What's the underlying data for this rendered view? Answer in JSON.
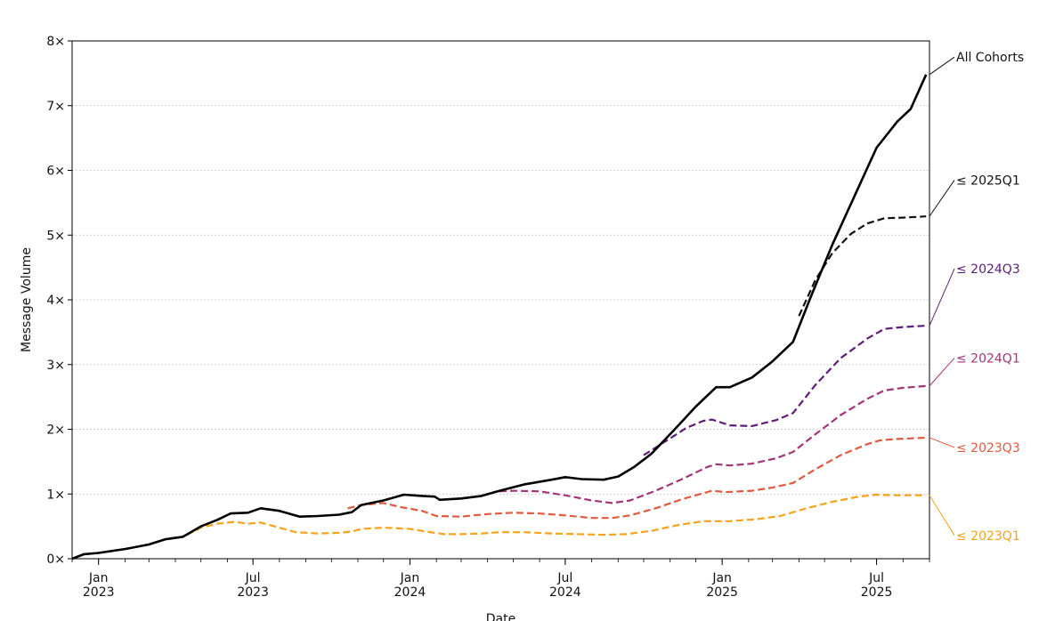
{
  "chart_data": {
    "type": "line",
    "xlabel": "Date",
    "ylabel": "Message Volume",
    "xlim": [
      "2022-12-01",
      "2025-09-01"
    ],
    "ylim": [
      0,
      8
    ],
    "grid": "horizontal dotted",
    "y_ticks": [
      0,
      1,
      2,
      3,
      4,
      5,
      6,
      7,
      8
    ],
    "y_tick_labels": [
      "0×",
      "1×",
      "2×",
      "3×",
      "4×",
      "5×",
      "6×",
      "7×",
      "8×"
    ],
    "x_ticks": [
      {
        "date": "2023-01-01",
        "label": [
          "Jan",
          "2023"
        ]
      },
      {
        "date": "2023-07-01",
        "label": [
          "Jul",
          "2023"
        ]
      },
      {
        "date": "2024-01-01",
        "label": [
          "Jan",
          "2024"
        ]
      },
      {
        "date": "2024-07-01",
        "label": [
          "Jul",
          "2024"
        ]
      },
      {
        "date": "2025-01-01",
        "label": [
          "Jan",
          "2025"
        ]
      },
      {
        "date": "2025-07-01",
        "label": [
          "Jul",
          "2025"
        ]
      }
    ],
    "series": [
      {
        "name": "≤ 2023Q1",
        "color": "#f8a21a",
        "style": "dashed",
        "points": [
          [
            "2022-12-01",
            0
          ],
          [
            "2022-12-15",
            0.07
          ],
          [
            "2023-01-01",
            0.09
          ],
          [
            "2023-02-01",
            0.15
          ],
          [
            "2023-03-01",
            0.22
          ],
          [
            "2023-03-20",
            0.3
          ],
          [
            "2023-04-10",
            0.34
          ],
          [
            "2023-05-01",
            0.48
          ],
          [
            "2023-05-20",
            0.54
          ],
          [
            "2023-06-10",
            0.57
          ],
          [
            "2023-06-25",
            0.54
          ],
          [
            "2023-07-10",
            0.56
          ],
          [
            "2023-08-01",
            0.48
          ],
          [
            "2023-08-20",
            0.41
          ],
          [
            "2023-09-15",
            0.39
          ],
          [
            "2023-10-10",
            0.4
          ],
          [
            "2023-10-25",
            0.42
          ],
          [
            "2023-11-05",
            0.46
          ],
          [
            "2023-12-01",
            0.48
          ],
          [
            "2024-01-01",
            0.46
          ],
          [
            "2024-01-25",
            0.41
          ],
          [
            "2024-02-10",
            0.38
          ],
          [
            "2024-03-01",
            0.38
          ],
          [
            "2024-03-25",
            0.39
          ],
          [
            "2024-04-15",
            0.41
          ],
          [
            "2024-05-15",
            0.41
          ],
          [
            "2024-06-15",
            0.39
          ],
          [
            "2024-07-15",
            0.38
          ],
          [
            "2024-08-15",
            0.37
          ],
          [
            "2024-09-10",
            0.38
          ],
          [
            "2024-10-10",
            0.43
          ],
          [
            "2024-11-10",
            0.52
          ],
          [
            "2024-12-10",
            0.58
          ],
          [
            "2025-01-10",
            0.58
          ],
          [
            "2025-02-10",
            0.61
          ],
          [
            "2025-03-10",
            0.66
          ],
          [
            "2025-04-10",
            0.78
          ],
          [
            "2025-05-10",
            0.88
          ],
          [
            "2025-06-10",
            0.96
          ],
          [
            "2025-07-01",
            0.99
          ],
          [
            "2025-07-20",
            0.98
          ],
          [
            "2025-08-28",
            0.98
          ]
        ]
      },
      {
        "name": "≤ 2023Q3",
        "color": "#e05a3f",
        "style": "dashed",
        "points": [
          [
            "2023-10-20",
            0.78
          ],
          [
            "2023-11-05",
            0.83
          ],
          [
            "2023-12-01",
            0.86
          ],
          [
            "2023-12-20",
            0.8
          ],
          [
            "2024-01-15",
            0.74
          ],
          [
            "2024-02-01",
            0.66
          ],
          [
            "2024-03-01",
            0.65
          ],
          [
            "2024-04-01",
            0.69
          ],
          [
            "2024-05-01",
            0.71
          ],
          [
            "2024-06-01",
            0.7
          ],
          [
            "2024-07-01",
            0.67
          ],
          [
            "2024-08-01",
            0.63
          ],
          [
            "2024-08-25",
            0.63
          ],
          [
            "2024-09-15",
            0.67
          ],
          [
            "2024-10-15",
            0.78
          ],
          [
            "2024-11-15",
            0.92
          ],
          [
            "2024-12-20",
            1.05
          ],
          [
            "2025-01-05",
            1.03
          ],
          [
            "2025-02-05",
            1.05
          ],
          [
            "2025-03-01",
            1.1
          ],
          [
            "2025-03-25",
            1.17
          ],
          [
            "2025-04-20",
            1.38
          ],
          [
            "2025-05-20",
            1.6
          ],
          [
            "2025-06-20",
            1.77
          ],
          [
            "2025-07-05",
            1.83
          ],
          [
            "2025-07-25",
            1.85
          ],
          [
            "2025-08-28",
            1.87
          ]
        ]
      },
      {
        "name": "≤ 2024Q1",
        "color": "#a33577",
        "style": "dashed",
        "points": [
          [
            "2024-04-15",
            1.04
          ],
          [
            "2024-05-01",
            1.05
          ],
          [
            "2024-06-01",
            1.04
          ],
          [
            "2024-07-01",
            0.98
          ],
          [
            "2024-08-01",
            0.9
          ],
          [
            "2024-08-25",
            0.86
          ],
          [
            "2024-09-15",
            0.9
          ],
          [
            "2024-10-15",
            1.05
          ],
          [
            "2024-11-15",
            1.23
          ],
          [
            "2024-12-15",
            1.42
          ],
          [
            "2024-12-25",
            1.46
          ],
          [
            "2025-01-10",
            1.44
          ],
          [
            "2025-02-05",
            1.47
          ],
          [
            "2025-03-05",
            1.55
          ],
          [
            "2025-03-25",
            1.65
          ],
          [
            "2025-04-20",
            1.92
          ],
          [
            "2025-05-20",
            2.22
          ],
          [
            "2025-06-20",
            2.47
          ],
          [
            "2025-07-10",
            2.6
          ],
          [
            "2025-08-01",
            2.64
          ],
          [
            "2025-08-28",
            2.67
          ]
        ]
      },
      {
        "name": "≤ 2024Q3",
        "color": "#5e1d78",
        "style": "dashed",
        "points": [
          [
            "2024-10-01",
            1.6
          ],
          [
            "2024-10-25",
            1.8
          ],
          [
            "2024-11-20",
            2.02
          ],
          [
            "2024-12-10",
            2.13
          ],
          [
            "2024-12-20",
            2.15
          ],
          [
            "2025-01-10",
            2.06
          ],
          [
            "2025-02-05",
            2.05
          ],
          [
            "2025-03-05",
            2.14
          ],
          [
            "2025-03-25",
            2.25
          ],
          [
            "2025-04-20",
            2.68
          ],
          [
            "2025-05-20",
            3.1
          ],
          [
            "2025-06-20",
            3.4
          ],
          [
            "2025-07-10",
            3.55
          ],
          [
            "2025-08-01",
            3.58
          ],
          [
            "2025-08-28",
            3.6
          ]
        ]
      },
      {
        "name": "≤ 2025Q1",
        "color": "#111111",
        "style": "dashed",
        "points": [
          [
            "2025-04-01",
            3.75
          ],
          [
            "2025-04-20",
            4.3
          ],
          [
            "2025-05-10",
            4.72
          ],
          [
            "2025-06-01",
            5.02
          ],
          [
            "2025-06-20",
            5.18
          ],
          [
            "2025-07-10",
            5.26
          ],
          [
            "2025-08-01",
            5.27
          ],
          [
            "2025-08-28",
            5.29
          ]
        ]
      },
      {
        "name": "All Cohorts",
        "color": "#000000",
        "style": "solid",
        "points": [
          [
            "2022-12-01",
            0
          ],
          [
            "2022-12-15",
            0.07
          ],
          [
            "2023-01-01",
            0.09
          ],
          [
            "2023-02-01",
            0.15
          ],
          [
            "2023-03-01",
            0.22
          ],
          [
            "2023-03-20",
            0.3
          ],
          [
            "2023-04-10",
            0.34
          ],
          [
            "2023-05-01",
            0.5
          ],
          [
            "2023-05-20",
            0.6
          ],
          [
            "2023-06-05",
            0.7
          ],
          [
            "2023-06-25",
            0.71
          ],
          [
            "2023-07-10",
            0.78
          ],
          [
            "2023-08-01",
            0.74
          ],
          [
            "2023-08-25",
            0.65
          ],
          [
            "2023-09-15",
            0.66
          ],
          [
            "2023-10-10",
            0.68
          ],
          [
            "2023-10-25",
            0.72
          ],
          [
            "2023-11-05",
            0.83
          ],
          [
            "2023-12-01",
            0.9
          ],
          [
            "2023-12-25",
            0.99
          ],
          [
            "2024-01-15",
            0.97
          ],
          [
            "2024-01-30",
            0.96
          ],
          [
            "2024-02-05",
            0.91
          ],
          [
            "2024-03-01",
            0.93
          ],
          [
            "2024-03-25",
            0.97
          ],
          [
            "2024-04-15",
            1.05
          ],
          [
            "2024-05-15",
            1.15
          ],
          [
            "2024-06-15",
            1.22
          ],
          [
            "2024-07-01",
            1.26
          ],
          [
            "2024-07-20",
            1.23
          ],
          [
            "2024-08-15",
            1.22
          ],
          [
            "2024-09-01",
            1.27
          ],
          [
            "2024-09-20",
            1.42
          ],
          [
            "2024-10-10",
            1.62
          ],
          [
            "2024-11-05",
            1.98
          ],
          [
            "2024-12-01",
            2.35
          ],
          [
            "2024-12-25",
            2.65
          ],
          [
            "2025-01-10",
            2.65
          ],
          [
            "2025-02-05",
            2.8
          ],
          [
            "2025-03-01",
            3.05
          ],
          [
            "2025-03-25",
            3.35
          ],
          [
            "2025-04-15",
            4.05
          ],
          [
            "2025-05-10",
            4.85
          ],
          [
            "2025-06-05",
            5.6
          ],
          [
            "2025-07-01",
            6.35
          ],
          [
            "2025-07-25",
            6.75
          ],
          [
            "2025-08-10",
            6.95
          ],
          [
            "2025-08-28",
            7.48
          ]
        ]
      }
    ],
    "series_labels": [
      {
        "name": "All Cohorts",
        "text": "All Cohorts",
        "color": "#111111",
        "label_y": 7.75,
        "end_y": 7.48
      },
      {
        "name": "≤ 2025Q1",
        "text": "≤ 2025Q1",
        "color": "#111111",
        "label_y": 5.85,
        "end_y": 5.29
      },
      {
        "name": "≤ 2024Q3",
        "text": "≤ 2024Q3",
        "color": "#5e1d78",
        "label_y": 4.48,
        "end_y": 3.6
      },
      {
        "name": "≤ 2024Q1",
        "text": "≤ 2024Q1",
        "color": "#a33577",
        "label_y": 3.1,
        "end_y": 2.67
      },
      {
        "name": "≤ 2023Q3",
        "text": "≤ 2023Q3",
        "color": "#e05a3f",
        "label_y": 1.72,
        "end_y": 1.87
      },
      {
        "name": "≤ 2023Q1",
        "text": "≤ 2023Q1",
        "color": "#f8a21a",
        "label_y": 0.36,
        "end_y": 0.98
      }
    ]
  }
}
